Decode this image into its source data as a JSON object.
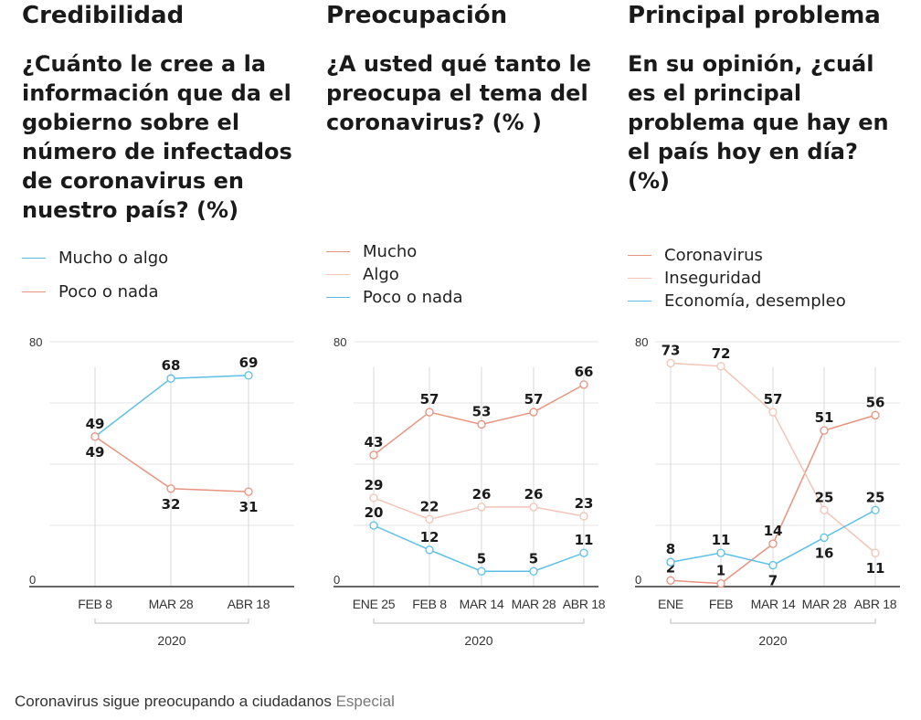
{
  "colors": {
    "blue": "#5bbfe6",
    "salmon": "#e8937f",
    "light_salmon": "#f2c5b6",
    "grid": "#e6e6e6",
    "axis": "#333333",
    "vline": "#d8d8d8",
    "label": "#1a1a1a"
  },
  "panels": [
    {
      "title": "Credibilidad",
      "question": "¿Cuánto le cree a la información que da el gobierno sobre el número de infectados de coronavirus en nuestro país? (%)",
      "legend": [
        {
          "label": "Mucho o algo",
          "color": "#5bbfe6"
        },
        {
          "label": "Poco o nada",
          "color": "#e8937f"
        }
      ]
    },
    {
      "title": "Preocupación",
      "question": "¿A usted qué tanto le preocupa el tema del coronavirus? (% )",
      "legend": [
        {
          "label": "Mucho",
          "color": "#e8937f"
        },
        {
          "label": "Algo",
          "color": "#f2c5b6"
        },
        {
          "label": "Poco o nada",
          "color": "#5bbfe6"
        }
      ]
    },
    {
      "title": "Principal problema",
      "question": "En su opinión, ¿cuál es el principal problema que hay en el país hoy en día? (%)",
      "legend": [
        {
          "label": "Coronavirus",
          "color": "#e8937f"
        },
        {
          "label": "Inseguridad",
          "color": "#f2c5b6"
        },
        {
          "label": "Economía, desempleo",
          "color": "#5bbfe6"
        }
      ]
    }
  ],
  "chart_data": [
    {
      "type": "line",
      "x": [
        "FEB 8",
        "MAR 28",
        "ABR 18"
      ],
      "ylim": [
        0,
        80
      ],
      "ytick_labels": [
        "0",
        "80"
      ],
      "group_label": "2020",
      "series": [
        {
          "name": "Mucho o algo",
          "color": "#5bbfe6",
          "values": [
            49,
            68,
            69
          ],
          "label_pos": [
            "above",
            "above",
            "above"
          ]
        },
        {
          "name": "Poco o nada",
          "color": "#e8937f",
          "values": [
            49,
            32,
            31
          ],
          "label_pos": [
            "below",
            "below",
            "below"
          ]
        }
      ]
    },
    {
      "type": "line",
      "x": [
        "ENE 25",
        "FEB 8",
        "MAR 14",
        "MAR 28",
        "ABR 18"
      ],
      "ylim": [
        0,
        80
      ],
      "ytick_labels": [
        "0",
        "80"
      ],
      "group_label": "2020",
      "series": [
        {
          "name": "Mucho",
          "color": "#e8937f",
          "values": [
            43,
            57,
            53,
            57,
            66
          ],
          "label_pos": [
            "above",
            "above",
            "above",
            "above",
            "above"
          ]
        },
        {
          "name": "Algo",
          "color": "#f2c5b6",
          "values": [
            29,
            22,
            26,
            26,
            23
          ],
          "label_pos": [
            "above",
            "above",
            "above",
            "above",
            "above"
          ]
        },
        {
          "name": "Poco o nada",
          "color": "#5bbfe6",
          "values": [
            20,
            12,
            5,
            5,
            11
          ],
          "label_pos": [
            "above",
            "above",
            "above",
            "above",
            "above"
          ]
        }
      ]
    },
    {
      "type": "line",
      "x": [
        "ENE",
        "FEB",
        "MAR 14",
        "MAR 28",
        "ABR 18"
      ],
      "ylim": [
        0,
        80
      ],
      "ytick_labels": [
        "0",
        "80"
      ],
      "group_label": "2020",
      "series": [
        {
          "name": "Coronavirus",
          "color": "#e8937f",
          "values": [
            2,
            1,
            14,
            51,
            56
          ],
          "label_pos": [
            "above",
            "above",
            "above",
            "above",
            "above"
          ]
        },
        {
          "name": "Inseguridad",
          "color": "#f2c5b6",
          "values": [
            73,
            72,
            57,
            25,
            11
          ],
          "label_pos": [
            "above",
            "above",
            "above",
            "above",
            "below"
          ]
        },
        {
          "name": "Economía, desempleo",
          "color": "#5bbfe6",
          "values": [
            8,
            11,
            7,
            16,
            25
          ],
          "label_pos": [
            "above",
            "above",
            "below",
            "below",
            "above"
          ]
        }
      ]
    }
  ],
  "caption": {
    "text": "Coronavirus sigue preocupando a ciudadanos",
    "credit": "Especial"
  }
}
